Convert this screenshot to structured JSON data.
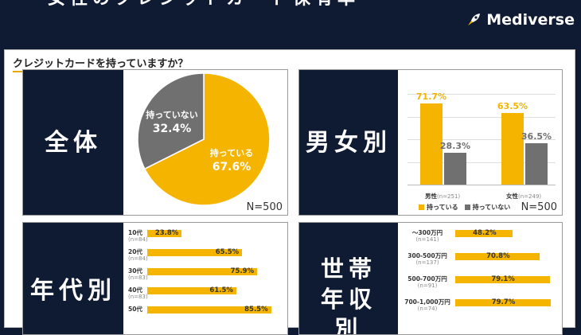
{
  "header": {
    "title": "女性のクレジットカード保有率",
    "logo": "Mediverse"
  },
  "question": "クレジットカードを持っていますか？",
  "colors": {
    "navy": "#0f1a33",
    "yes": "#f5b400",
    "no": "#707070"
  },
  "panels": {
    "overall": {
      "label": "全体",
      "n": "N=500"
    },
    "gender": {
      "label": "男女別",
      "n": "N=500"
    },
    "age": {
      "label": "年代別"
    },
    "income": {
      "label": "世帯年収別"
    }
  },
  "chart_data": [
    {
      "type": "pie",
      "labels": [
        "持っている",
        "持っていない"
      ],
      "values": [
        67.6,
        32.4
      ],
      "value_labels": [
        "67.6%",
        "32.4%"
      ]
    },
    {
      "type": "bar",
      "categories": [
        "男性",
        "女性"
      ],
      "category_n": [
        "(n=251)",
        "(n=249)"
      ],
      "series": [
        {
          "name": "持っている",
          "values": [
            71.7,
            63.5
          ],
          "labels": [
            "71.7%",
            "63.5%"
          ]
        },
        {
          "name": "持っていない",
          "values": [
            28.3,
            36.5
          ],
          "labels": [
            "28.3%",
            "36.5%"
          ]
        }
      ],
      "ylim": [
        0,
        80
      ]
    },
    {
      "type": "bar",
      "orientation": "horizontal",
      "categories": [
        "10代",
        "20代",
        "30代",
        "40代",
        "50代"
      ],
      "category_n": [
        "(n=84)",
        "(n=84)",
        "(n=83)",
        "(n=83)",
        ""
      ],
      "values": [
        23.8,
        65.5,
        75.9,
        61.5,
        85.5
      ],
      "labels": [
        "23.8%",
        "65.5%",
        "75.9%",
        "61.5%",
        "85.5%"
      ],
      "xlim": [
        0,
        100
      ]
    },
    {
      "type": "bar",
      "orientation": "horizontal",
      "categories": [
        "～300万円",
        "300-500万円",
        "500-700万円",
        "700-1,000万円"
      ],
      "category_n": [
        "(n=141)",
        "(n=137)",
        "(n=91)",
        "(n=74)"
      ],
      "values": [
        48.2,
        70.8,
        79.1,
        79.7
      ],
      "labels": [
        "48.2%",
        "70.8%",
        "79.1%",
        "79.7%"
      ],
      "xlim": [
        0,
        100
      ]
    }
  ]
}
